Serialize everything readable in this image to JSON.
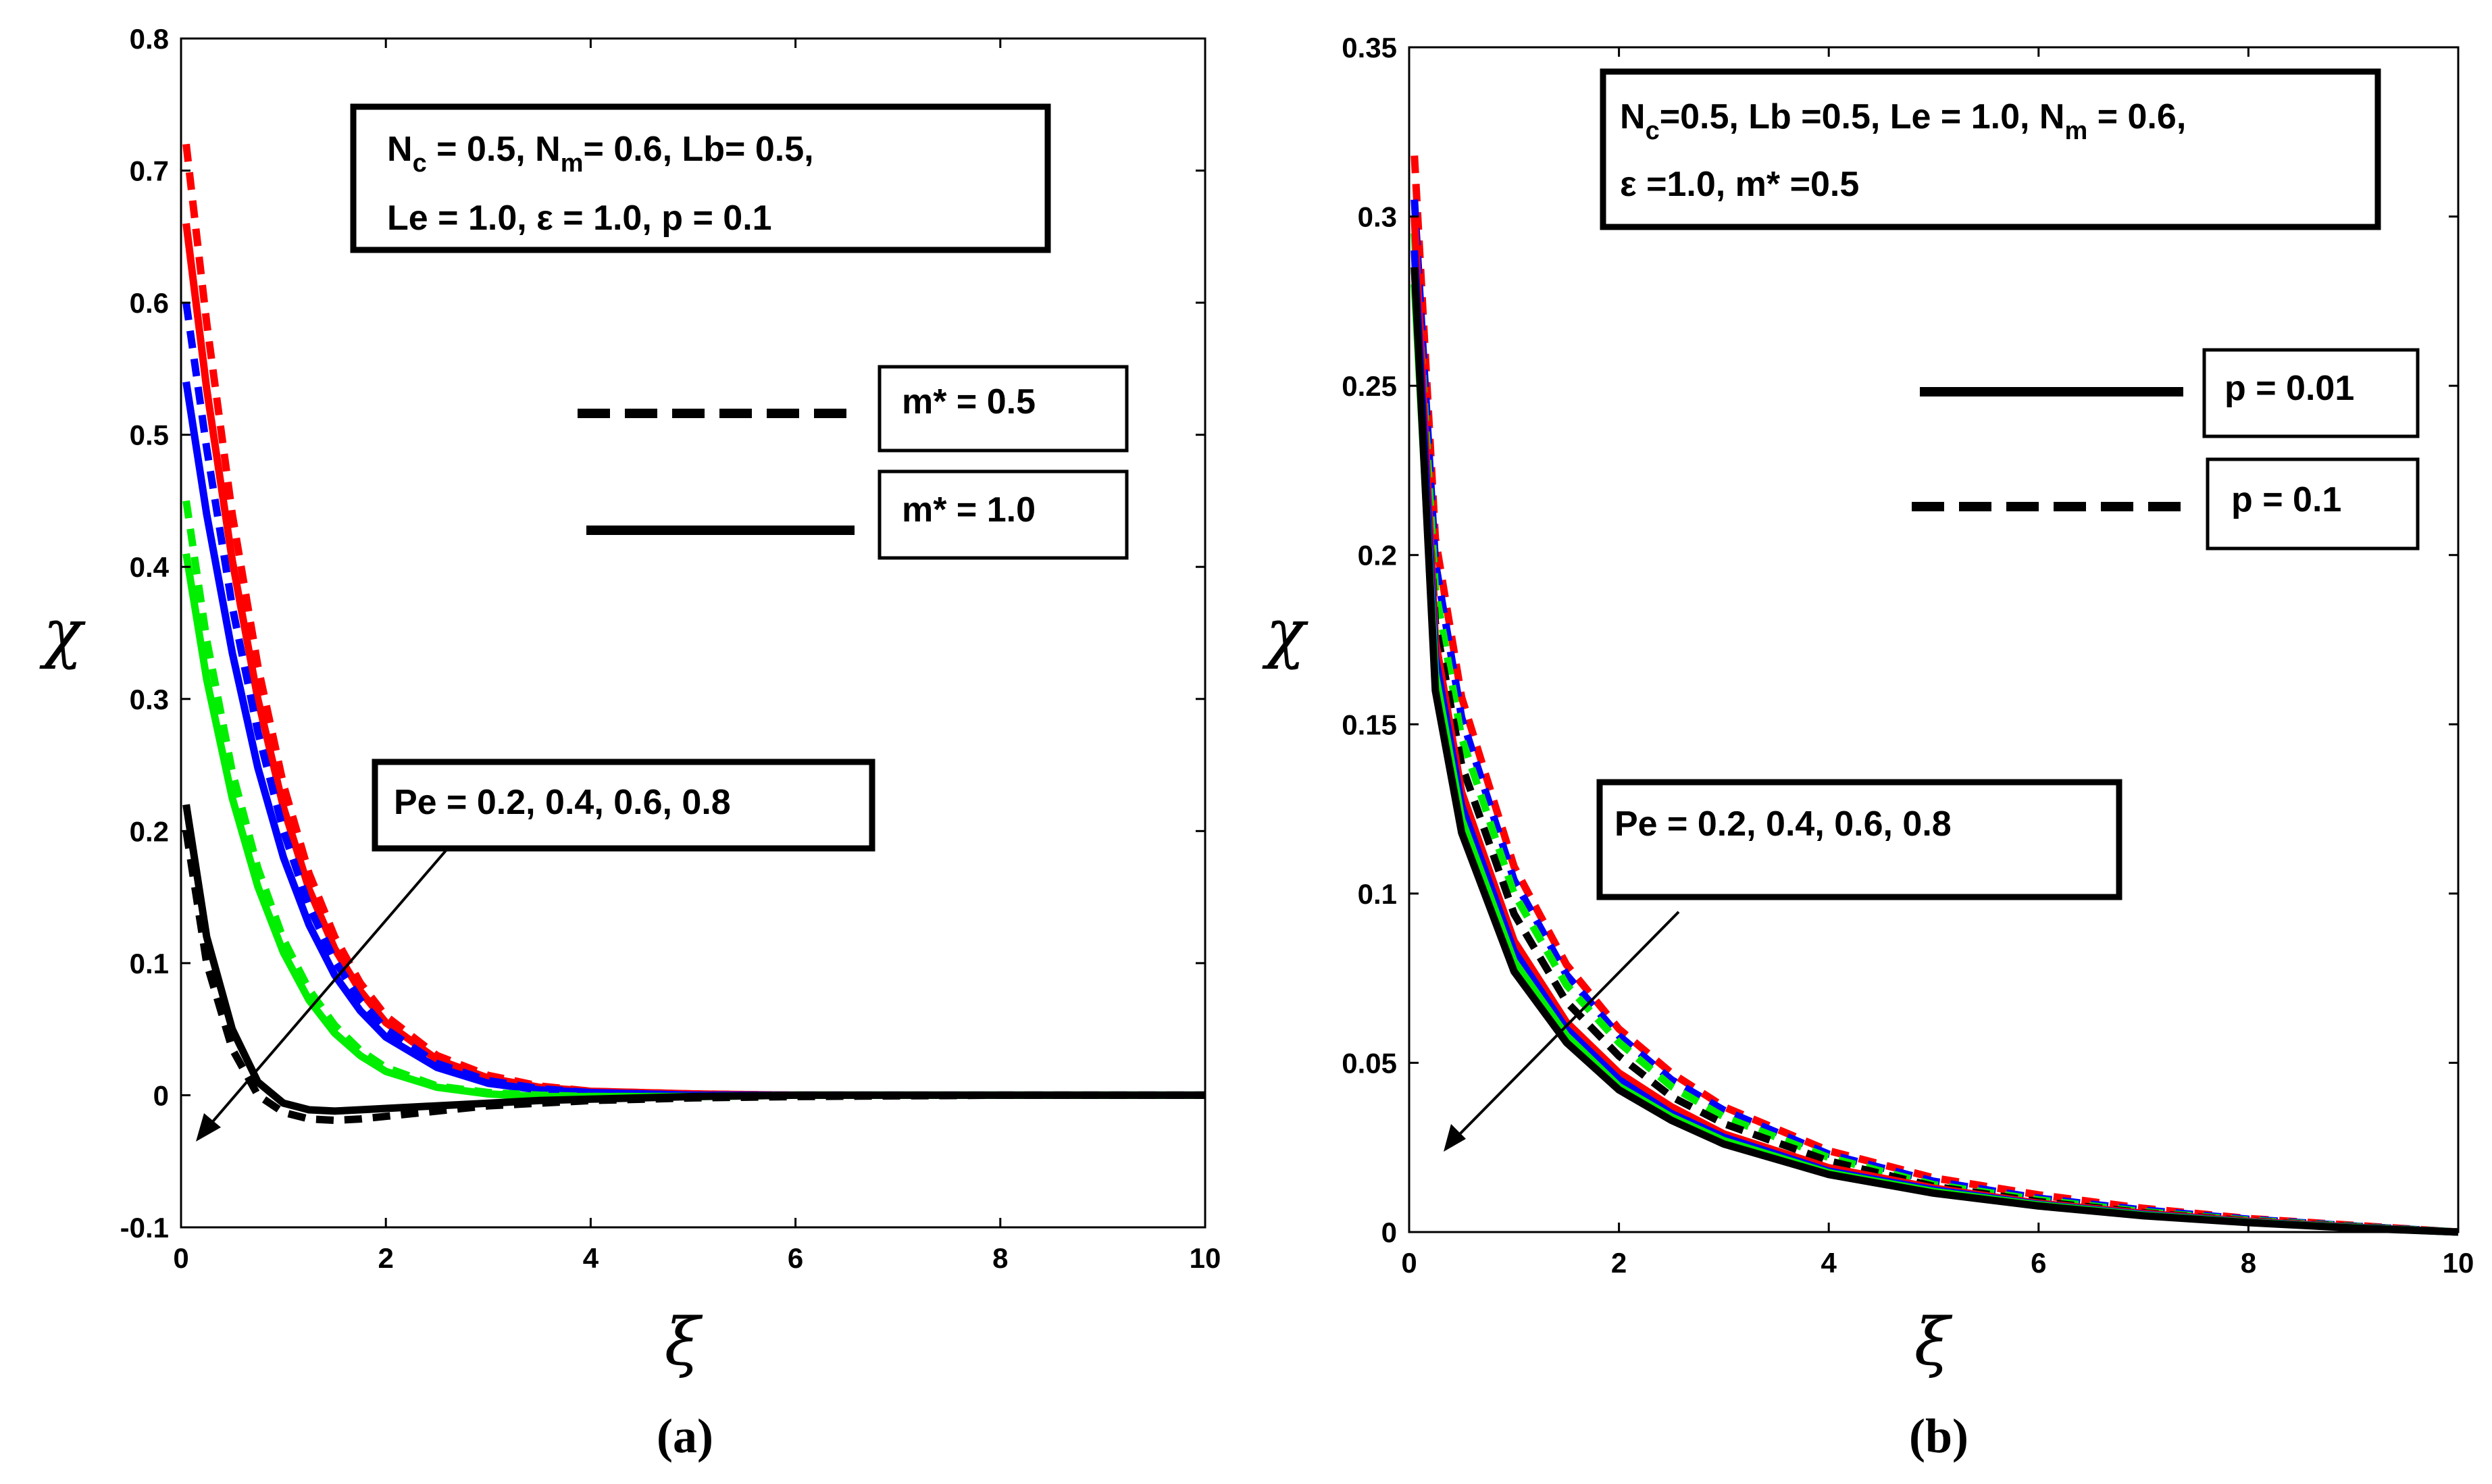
{
  "chart_data": [
    {
      "panel": "a",
      "type": "line",
      "caption": "(a)",
      "xlabel": "ξ",
      "ylabel": "χ",
      "xlim": [
        0,
        10
      ],
      "ylim": [
        -0.1,
        0.8
      ],
      "xticks": [
        "0",
        "2",
        "4",
        "6",
        "8",
        "10"
      ],
      "yticks": [
        "-0.1",
        "0",
        "0.1",
        "0.2",
        "0.3",
        "0.4",
        "0.5",
        "0.6",
        "0.7",
        "0.8"
      ],
      "grid": false,
      "params": [
        "N_c = 0.5, N_m = 0.6, Lb= 0.5,",
        "Le = 1.0, ε = 1.0, p = 0.1"
      ],
      "legend": [
        {
          "label": "m* = 0.5",
          "style": "dashed"
        },
        {
          "label": "m* = 1.0",
          "style": "solid"
        }
      ],
      "annotation": "Pe = 0.2, 0.4, 0.6, 0.8",
      "colors": [
        "#ff0000",
        "#0000ff",
        "#00ee00",
        "#000000"
      ],
      "series": [
        {
          "color": "#ff0000",
          "style": "dashed",
          "x": [
            0.05,
            0.25,
            0.5,
            0.75,
            1.0,
            1.25,
            1.5,
            1.75,
            2.0,
            2.5,
            3.0,
            3.5,
            4.0,
            5.0,
            6.0,
            8.0,
            10.0
          ],
          "y": [
            0.72,
            0.585,
            0.44,
            0.325,
            0.235,
            0.168,
            0.12,
            0.085,
            0.06,
            0.03,
            0.015,
            0.007,
            0.003,
            0.001,
            0.0,
            0.0,
            0.0
          ]
        },
        {
          "color": "#ff0000",
          "style": "solid",
          "x": [
            0.05,
            0.25,
            0.5,
            0.75,
            1.0,
            1.25,
            1.5,
            1.75,
            2.0,
            2.5,
            3.0,
            3.5,
            4.0,
            5.0,
            6.0,
            8.0,
            10.0
          ],
          "y": [
            0.66,
            0.535,
            0.405,
            0.3,
            0.218,
            0.156,
            0.111,
            0.079,
            0.055,
            0.027,
            0.013,
            0.006,
            0.003,
            0.001,
            0.0,
            0.0,
            0.0
          ]
        },
        {
          "color": "#0000ff",
          "style": "dashed",
          "x": [
            0.05,
            0.25,
            0.5,
            0.75,
            1.0,
            1.25,
            1.5,
            1.75,
            2.0,
            2.5,
            3.0,
            3.5,
            4.0,
            5.0,
            6.0,
            8.0,
            10.0
          ],
          "y": [
            0.6,
            0.49,
            0.37,
            0.275,
            0.2,
            0.143,
            0.102,
            0.072,
            0.05,
            0.024,
            0.011,
            0.005,
            0.002,
            0.0,
            0.0,
            0.0,
            0.0
          ]
        },
        {
          "color": "#0000ff",
          "style": "solid",
          "x": [
            0.05,
            0.25,
            0.5,
            0.75,
            1.0,
            1.25,
            1.5,
            1.75,
            2.0,
            2.5,
            3.0,
            3.5,
            4.0,
            5.0,
            6.0,
            8.0,
            10.0
          ],
          "y": [
            0.54,
            0.44,
            0.335,
            0.248,
            0.18,
            0.129,
            0.091,
            0.064,
            0.044,
            0.021,
            0.009,
            0.004,
            0.002,
            0.0,
            0.0,
            0.0,
            0.0
          ]
        },
        {
          "color": "#00ee00",
          "style": "dashed",
          "x": [
            0.05,
            0.25,
            0.5,
            0.75,
            1.0,
            1.25,
            1.5,
            1.75,
            2.0,
            2.5,
            3.0,
            3.5,
            4.0,
            5.0,
            6.0,
            8.0,
            10.0
          ],
          "y": [
            0.45,
            0.345,
            0.245,
            0.172,
            0.118,
            0.08,
            0.053,
            0.034,
            0.021,
            0.007,
            0.002,
            0.0,
            -0.001,
            -0.001,
            0.0,
            0.0,
            0.0
          ]
        },
        {
          "color": "#00ee00",
          "style": "solid",
          "x": [
            0.05,
            0.25,
            0.5,
            0.75,
            1.0,
            1.25,
            1.5,
            1.75,
            2.0,
            2.5,
            3.0,
            3.5,
            4.0,
            5.0,
            6.0,
            8.0,
            10.0
          ],
          "y": [
            0.41,
            0.315,
            0.225,
            0.158,
            0.108,
            0.072,
            0.047,
            0.03,
            0.018,
            0.006,
            0.001,
            -0.001,
            -0.001,
            -0.001,
            0.0,
            0.0,
            0.0
          ]
        },
        {
          "color": "#000000",
          "style": "dashed",
          "x": [
            0.05,
            0.25,
            0.5,
            0.75,
            1.0,
            1.25,
            1.5,
            1.75,
            2.0,
            2.5,
            3.0,
            3.5,
            4.0,
            5.0,
            6.0,
            8.0,
            10.0
          ],
          "y": [
            0.2,
            0.1,
            0.035,
            0.0,
            -0.013,
            -0.018,
            -0.019,
            -0.018,
            -0.016,
            -0.012,
            -0.008,
            -0.006,
            -0.004,
            -0.002,
            -0.001,
            0.0,
            0.0
          ]
        },
        {
          "color": "#000000",
          "style": "solid",
          "x": [
            0.05,
            0.25,
            0.5,
            0.75,
            1.0,
            1.25,
            1.5,
            1.75,
            2.0,
            2.5,
            3.0,
            3.5,
            4.0,
            5.0,
            6.0,
            8.0,
            10.0
          ],
          "y": [
            0.22,
            0.12,
            0.05,
            0.01,
            -0.006,
            -0.011,
            -0.012,
            -0.011,
            -0.01,
            -0.008,
            -0.006,
            -0.004,
            -0.003,
            -0.001,
            0.0,
            0.0,
            0.0
          ]
        }
      ]
    },
    {
      "panel": "b",
      "type": "line",
      "caption": "(b)",
      "xlabel": "ξ",
      "ylabel": "χ",
      "xlim": [
        0,
        10
      ],
      "ylim": [
        0,
        0.35
      ],
      "xticks": [
        "0",
        "2",
        "4",
        "6",
        "8",
        "10"
      ],
      "yticks": [
        "0",
        "0.05",
        "0.1",
        "0.15",
        "0.2",
        "0.25",
        "0.3",
        "0.35"
      ],
      "grid": false,
      "params": [
        "N_c=0.5, Lb =0.5, Le = 1.0, N_m = 0.6,",
        "ε =1.0, m* =0.5"
      ],
      "legend": [
        {
          "label": "p = 0.01",
          "style": "solid"
        },
        {
          "label": "p = 0.1",
          "style": "dashed"
        }
      ],
      "annotation": "Pe = 0.2, 0.4, 0.6, 0.8",
      "colors": [
        "#ff0000",
        "#0000ff",
        "#00ee00",
        "#000000"
      ],
      "series": [
        {
          "color": "#ff0000",
          "style": "dashed",
          "x": [
            0.05,
            0.25,
            0.5,
            1.0,
            1.5,
            2.0,
            2.5,
            3.0,
            4.0,
            5.0,
            6.0,
            7.0,
            8.0,
            9.0,
            10.0
          ],
          "y": [
            0.318,
            0.205,
            0.158,
            0.108,
            0.079,
            0.06,
            0.047,
            0.037,
            0.024,
            0.016,
            0.011,
            0.007,
            0.004,
            0.002,
            0.0
          ]
        },
        {
          "color": "#0000ff",
          "style": "dashed",
          "x": [
            0.05,
            0.25,
            0.5,
            1.0,
            1.5,
            2.0,
            2.5,
            3.0,
            4.0,
            5.0,
            6.0,
            7.0,
            8.0,
            9.0,
            10.0
          ],
          "y": [
            0.305,
            0.198,
            0.152,
            0.104,
            0.076,
            0.058,
            0.045,
            0.036,
            0.023,
            0.015,
            0.01,
            0.0065,
            0.0038,
            0.0018,
            0.0
          ]
        },
        {
          "color": "#00ee00",
          "style": "dashed",
          "x": [
            0.05,
            0.25,
            0.5,
            1.0,
            1.5,
            2.0,
            2.5,
            3.0,
            4.0,
            5.0,
            6.0,
            7.0,
            8.0,
            9.0,
            10.0
          ],
          "y": [
            0.295,
            0.19,
            0.146,
            0.1,
            0.073,
            0.056,
            0.043,
            0.034,
            0.022,
            0.014,
            0.0095,
            0.006,
            0.0035,
            0.0017,
            0.0
          ]
        },
        {
          "color": "#000000",
          "style": "dashed",
          "x": [
            0.05,
            0.25,
            0.5,
            1.0,
            1.5,
            2.0,
            2.5,
            3.0,
            4.0,
            5.0,
            6.0,
            7.0,
            8.0,
            9.0,
            10.0
          ],
          "y": [
            0.285,
            0.18,
            0.138,
            0.094,
            0.068,
            0.052,
            0.04,
            0.032,
            0.021,
            0.0135,
            0.009,
            0.0057,
            0.0033,
            0.0016,
            0.0
          ]
        },
        {
          "color": "#ff0000",
          "style": "solid",
          "x": [
            0.05,
            0.25,
            0.5,
            1.0,
            1.5,
            2.0,
            2.5,
            3.0,
            4.0,
            5.0,
            6.0,
            7.0,
            8.0,
            9.0,
            10.0
          ],
          "y": [
            0.3,
            0.175,
            0.13,
            0.086,
            0.062,
            0.047,
            0.037,
            0.029,
            0.019,
            0.013,
            0.0085,
            0.0055,
            0.0032,
            0.0015,
            0.0
          ]
        },
        {
          "color": "#0000ff",
          "style": "solid",
          "x": [
            0.05,
            0.25,
            0.5,
            1.0,
            1.5,
            2.0,
            2.5,
            3.0,
            4.0,
            5.0,
            6.0,
            7.0,
            8.0,
            9.0,
            10.0
          ],
          "y": [
            0.29,
            0.17,
            0.126,
            0.083,
            0.06,
            0.045,
            0.035,
            0.028,
            0.018,
            0.0125,
            0.0082,
            0.0052,
            0.003,
            0.0014,
            0.0
          ]
        },
        {
          "color": "#00ee00",
          "style": "solid",
          "x": [
            0.05,
            0.25,
            0.5,
            1.0,
            1.5,
            2.0,
            2.5,
            3.0,
            4.0,
            5.0,
            6.0,
            7.0,
            8.0,
            9.0,
            10.0
          ],
          "y": [
            0.28,
            0.165,
            0.122,
            0.08,
            0.058,
            0.043,
            0.034,
            0.027,
            0.0175,
            0.012,
            0.008,
            0.005,
            0.0029,
            0.0013,
            0.0
          ]
        },
        {
          "color": "#000000",
          "style": "solid",
          "x": [
            0.05,
            0.25,
            0.5,
            1.0,
            1.5,
            2.0,
            2.5,
            3.0,
            4.0,
            5.0,
            6.0,
            7.0,
            8.0,
            9.0,
            10.0
          ],
          "y": [
            0.285,
            0.16,
            0.118,
            0.077,
            0.056,
            0.042,
            0.033,
            0.026,
            0.017,
            0.0115,
            0.0077,
            0.0048,
            0.0028,
            0.0012,
            0.0
          ]
        }
      ]
    }
  ]
}
